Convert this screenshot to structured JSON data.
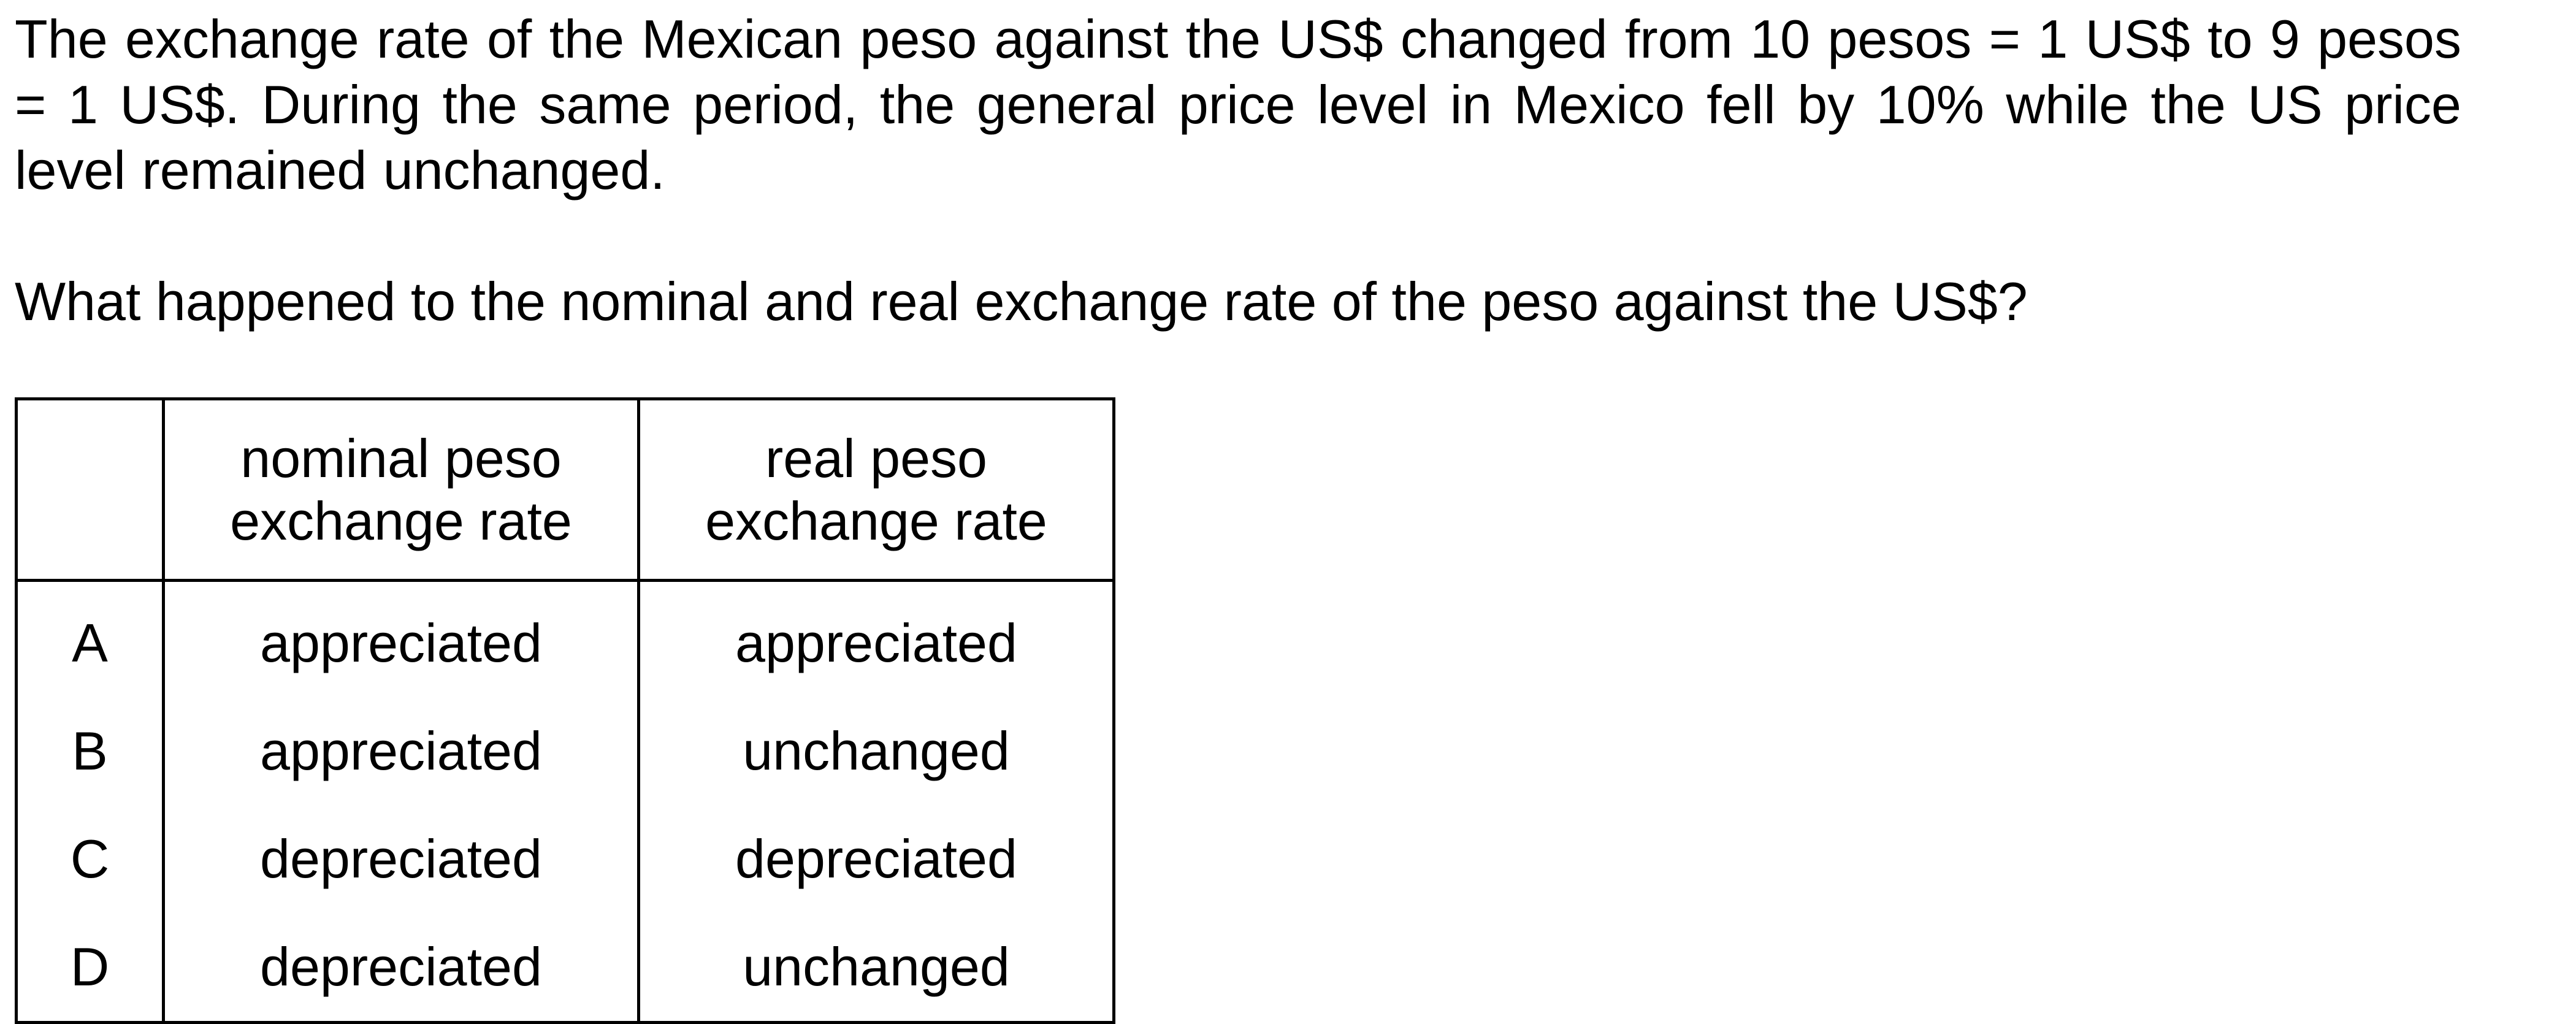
{
  "stem": {
    "paragraph": "The exchange rate of the Mexican peso against the US$ changed from 10 pesos = 1 US$ to 9 pesos = 1 US$. During the same period, the general price level in Mexico fell by 10% while the US price level remained unchanged.",
    "question": "What happened to the nominal and real exchange rate of the peso against the US$?"
  },
  "table": {
    "headers": {
      "letter": "",
      "nominal": "nominal peso exchange rate",
      "real": "real peso exchange rate"
    },
    "rows": [
      {
        "letter": "A",
        "nominal": "appreciated",
        "real": "appreciated"
      },
      {
        "letter": "B",
        "nominal": "appreciated",
        "real": "unchanged"
      },
      {
        "letter": "C",
        "nominal": "depreciated",
        "real": "depreciated"
      },
      {
        "letter": "D",
        "nominal": "depreciated",
        "real": "unchanged"
      }
    ]
  }
}
